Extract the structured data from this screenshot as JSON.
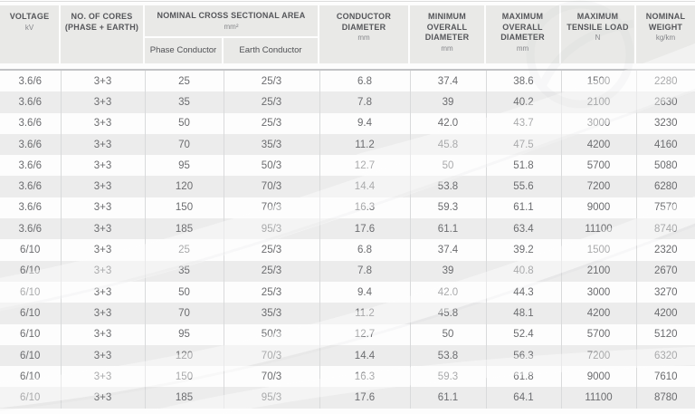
{
  "table": {
    "header": {
      "voltage": {
        "title": "VOLTAGE",
        "unit": "kV"
      },
      "cores": {
        "title": "NO. OF CORES (PHASE + EARTH)"
      },
      "area": {
        "title": "NOMINAL CROSS SECTIONAL AREA",
        "unit": "mm²",
        "subcolumns": [
          "Phase Conductor",
          "Earth Conductor"
        ]
      },
      "conductor_diameter": {
        "title": "CONDUCTOR DIAMETER",
        "unit": "mm"
      },
      "min_overall_diameter": {
        "title": "MINIMUM OVERALL DIAMETER",
        "unit": "mm"
      },
      "max_overall_diameter": {
        "title": "MAXIMUM OVERALL DIAMETER",
        "unit": "mm"
      },
      "max_tensile_load": {
        "title": "MAXIMUM TENSILE LOAD",
        "unit": "N"
      },
      "nominal_weight": {
        "title": "NOMINAL WEIGHT",
        "unit": "kg/km"
      }
    },
    "rows": [
      [
        "3.6/6",
        "3+3",
        "25",
        "25/3",
        "6.8",
        "37.4",
        "38.6",
        "1500",
        "2280"
      ],
      [
        "3.6/6",
        "3+3",
        "35",
        "25/3",
        "7.8",
        "39",
        "40.2",
        "2100",
        "2630"
      ],
      [
        "3.6/6",
        "3+3",
        "50",
        "25/3",
        "9.4",
        "42.0",
        "43.7",
        "3000",
        "3230"
      ],
      [
        "3.6/6",
        "3+3",
        "70",
        "35/3",
        "11.2",
        "45.8",
        "47.5",
        "4200",
        "4160"
      ],
      [
        "3.6/6",
        "3+3",
        "95",
        "50/3",
        "12.7",
        "50",
        "51.8",
        "5700",
        "5080"
      ],
      [
        "3.6/6",
        "3+3",
        "120",
        "70/3",
        "14.4",
        "53.8",
        "55.6",
        "7200",
        "6280"
      ],
      [
        "3.6/6",
        "3+3",
        "150",
        "70/3",
        "16.3",
        "59.3",
        "61.1",
        "9000",
        "7570"
      ],
      [
        "3.6/6",
        "3+3",
        "185",
        "95/3",
        "17.6",
        "61.1",
        "63.4",
        "11100",
        "8740"
      ],
      [
        "6/10",
        "3+3",
        "25",
        "25/3",
        "6.8",
        "37.4",
        "39.2",
        "1500",
        "2320"
      ],
      [
        "6/10",
        "3+3",
        "35",
        "25/3",
        "7.8",
        "39",
        "40.8",
        "2100",
        "2670"
      ],
      [
        "6/10",
        "3+3",
        "50",
        "25/3",
        "9.4",
        "42.0",
        "44.3",
        "3000",
        "3270"
      ],
      [
        "6/10",
        "3+3",
        "70",
        "35/3",
        "11.2",
        "45.8",
        "48.1",
        "4200",
        "4200"
      ],
      [
        "6/10",
        "3+3",
        "95",
        "50/3",
        "12.7",
        "50",
        "52.4",
        "5700",
        "5120"
      ],
      [
        "6/10",
        "3+3",
        "120",
        "70/3",
        "14.4",
        "53.8",
        "56.3",
        "7200",
        "6320"
      ],
      [
        "6/10",
        "3+3",
        "150",
        "70/3",
        "16.3",
        "59.3",
        "61.8",
        "9000",
        "7610"
      ],
      [
        "6/10",
        "3+3",
        "185",
        "95/3",
        "17.6",
        "61.1",
        "64.1",
        "11100",
        "8780"
      ]
    ],
    "colors": {
      "page-bg": "#fdfdfd",
      "header-bg": "#e9e9e7",
      "header-text": "#55565a",
      "data-text": "#6b6c6f",
      "row-alt-bg": "#ececec",
      "grid-line": "#d9dadb",
      "separator": "#c2c3c5"
    }
  }
}
